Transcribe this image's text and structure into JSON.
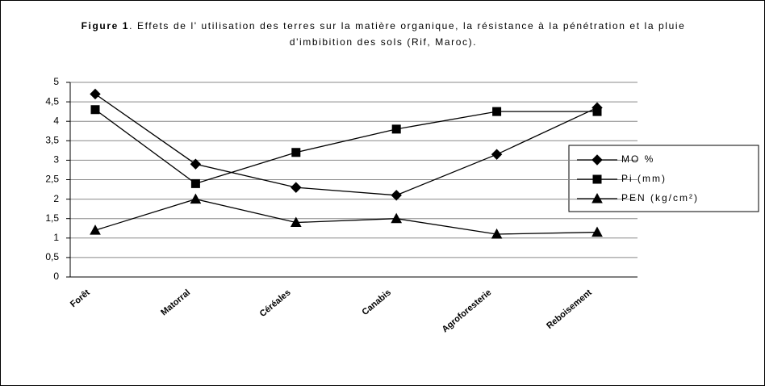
{
  "chart_data": {
    "type": "line",
    "title_label": "Figure 1",
    "title": ". Effets de l' utilisation des terres sur la matière organique, la résistance à la pénétration et la pluie d'imbibition des sols (Rif, Maroc).",
    "categories": [
      "Forêt",
      "Matorral",
      "Céréales",
      "Canabis",
      "Agroforesterie",
      "Reboisement"
    ],
    "series": [
      {
        "name": "MO %",
        "color": "#000000",
        "marker": "diamond",
        "values": [
          4.7,
          2.9,
          2.3,
          2.1,
          3.15,
          4.35
        ]
      },
      {
        "name": "Pi (mm)",
        "color": "#000000",
        "marker": "square",
        "values": [
          4.3,
          2.4,
          3.2,
          3.8,
          4.25,
          4.25
        ]
      },
      {
        "name": "PEN (kg/cm²)",
        "color": "#000000",
        "marker": "triangle",
        "values": [
          1.2,
          2.0,
          1.4,
          1.5,
          1.1,
          1.15
        ]
      }
    ],
    "ylim": [
      0,
      5
    ],
    "yticks": [
      0,
      {
        "value": 0.5,
        "label": "0,5"
      },
      1,
      {
        "value": 1.5,
        "label": "1,5"
      },
      2,
      {
        "value": 2.5,
        "label": "2,5"
      },
      3,
      {
        "value": 3.5,
        "label": "3,5"
      },
      4,
      {
        "value": 4.5,
        "label": "4,5"
      },
      5
    ],
    "grid": true,
    "legend": "right"
  }
}
